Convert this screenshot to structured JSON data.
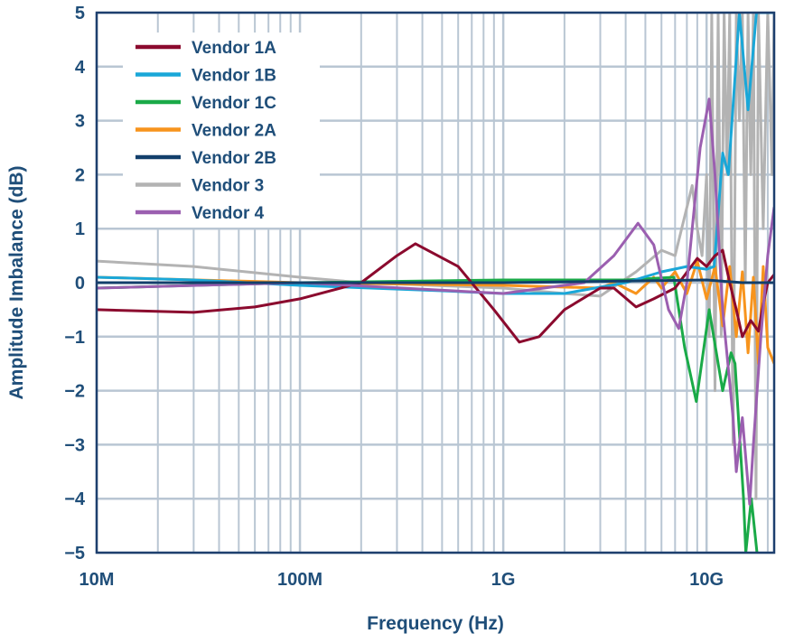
{
  "chart_data": {
    "type": "line",
    "title": "",
    "xlabel": "Frequency (Hz)",
    "ylabel": "Amplitude Imbalance (dB)",
    "xscale": "log",
    "xlim": [
      10000000.0,
      21500000000.0
    ],
    "ylim": [
      -5,
      5
    ],
    "grid": true,
    "legend_position": "top-left",
    "x_ticks": [
      {
        "v": 10000000.0,
        "label": "10M"
      },
      {
        "v": 100000000.0,
        "label": "100M"
      },
      {
        "v": 1000000000.0,
        "label": "1G"
      },
      {
        "v": 10000000000.0,
        "label": "10G"
      }
    ],
    "y_ticks": [
      {
        "v": 5,
        "label": "5"
      },
      {
        "v": 4,
        "label": "4"
      },
      {
        "v": 3,
        "label": "3"
      },
      {
        "v": 2,
        "label": "2"
      },
      {
        "v": 1,
        "label": "1"
      },
      {
        "v": 0,
        "label": "0"
      },
      {
        "v": -1,
        "label": "−1"
      },
      {
        "v": -2,
        "label": "−2"
      },
      {
        "v": -3,
        "label": "−3"
      },
      {
        "v": -4,
        "label": "−4"
      },
      {
        "v": -5,
        "label": "−5"
      }
    ],
    "series": [
      {
        "name": "Vendor 1A",
        "color": "#8b0a2e",
        "points": [
          [
            10000000.0,
            -0.5
          ],
          [
            30000000.0,
            -0.55
          ],
          [
            60000000.0,
            -0.45
          ],
          [
            100000000.0,
            -0.3
          ],
          [
            200000000.0,
            0
          ],
          [
            300000000.0,
            0.5
          ],
          [
            370000000.0,
            0.72
          ],
          [
            600000000.0,
            0.3
          ],
          [
            900000000.0,
            -0.5
          ],
          [
            1200000000.0,
            -1.1
          ],
          [
            1500000000.0,
            -1.0
          ],
          [
            2000000000.0,
            -0.5
          ],
          [
            3000000000.0,
            -0.1
          ],
          [
            3500000000.0,
            -0.1
          ],
          [
            4500000000.0,
            -0.45
          ],
          [
            5500000000.0,
            -0.3
          ],
          [
            7000000000.0,
            -0.1
          ],
          [
            9000000000.0,
            0.45
          ],
          [
            10000000000.0,
            0.3
          ],
          [
            11000000000.0,
            0.5
          ],
          [
            12000000000.0,
            0.6
          ],
          [
            13000000000.0,
            0
          ],
          [
            14000000000.0,
            -0.5
          ],
          [
            15000000000.0,
            -1.0
          ],
          [
            16500000000.0,
            -0.7
          ],
          [
            18000000000.0,
            -0.9
          ],
          [
            19000000000.0,
            -0.4
          ],
          [
            20000000000.0,
            0
          ],
          [
            21500000000.0,
            0.15
          ]
        ]
      },
      {
        "name": "Vendor 1B",
        "color": "#1aa7d8",
        "points": [
          [
            10000000.0,
            0.1
          ],
          [
            30000000.0,
            0.05
          ],
          [
            100000000.0,
            -0.05
          ],
          [
            500000000.0,
            -0.15
          ],
          [
            1000000000.0,
            -0.2
          ],
          [
            2000000000.0,
            -0.2
          ],
          [
            4000000000.0,
            0
          ],
          [
            6000000000.0,
            0.2
          ],
          [
            8000000000.0,
            0.3
          ],
          [
            10000000000.0,
            0.25
          ],
          [
            10900000000.0,
            0.3
          ],
          [
            12000000000.0,
            2.4
          ],
          [
            12800000000.0,
            2.0
          ],
          [
            14500000000.0,
            5
          ],
          [
            16000000000.0,
            3.2
          ],
          [
            17600000000.0,
            5
          ],
          [
            21500000000.0,
            5
          ]
        ]
      },
      {
        "name": "Vendor 1C",
        "color": "#1aaa48",
        "points": [
          [
            10000000.0,
            -0.1
          ],
          [
            30000000.0,
            -0.05
          ],
          [
            100000000.0,
            0
          ],
          [
            1000000000.0,
            0.05
          ],
          [
            4000000000.0,
            0.05
          ],
          [
            6900000000.0,
            0.1
          ],
          [
            7800000000.0,
            -1.2
          ],
          [
            8900000000.0,
            -2.2
          ],
          [
            10300000000.0,
            -0.5
          ],
          [
            12000000000.0,
            -2.0
          ],
          [
            13200000000.0,
            -1.3
          ],
          [
            13800000000.0,
            -1.5
          ],
          [
            15200000000.0,
            -4
          ],
          [
            15600000000.0,
            -5
          ],
          [
            16600000000.0,
            -4
          ],
          [
            17700000000.0,
            -5
          ]
        ]
      },
      {
        "name": "Vendor 2A",
        "color": "#f7941d",
        "points": [
          [
            10000000.0,
            0.1
          ],
          [
            100000000.0,
            0
          ],
          [
            1000000000.0,
            -0.05
          ],
          [
            3000000000.0,
            -0.1
          ],
          [
            3500000000.0,
            0
          ],
          [
            4500000000.0,
            -0.2
          ],
          [
            5500000000.0,
            0.1
          ],
          [
            6000000000.0,
            -0.1
          ],
          [
            7000000000.0,
            0.2
          ],
          [
            8000000000.0,
            -0.2
          ],
          [
            9000000000.0,
            0.4
          ],
          [
            10000000000.0,
            -0.3
          ],
          [
            11000000000.0,
            0.3
          ],
          [
            12000000000.0,
            -0.8
          ],
          [
            13000000000.0,
            0.3
          ],
          [
            14000000000.0,
            -1.0
          ],
          [
            15000000000.0,
            0.2
          ],
          [
            16000000000.0,
            -1.3
          ],
          [
            17000000000.0,
            0.1
          ],
          [
            18000000000.0,
            -1.5
          ],
          [
            19000000000.0,
            0.3
          ],
          [
            20000000000.0,
            -1.2
          ],
          [
            21500000000.0,
            -1.5
          ]
        ]
      },
      {
        "name": "Vendor 2B",
        "color": "#123f6b",
        "points": [
          [
            10000000.0,
            0
          ],
          [
            100000000.0,
            0
          ],
          [
            1000000000.0,
            0
          ],
          [
            10000000000.0,
            0.05
          ],
          [
            15000000000.0,
            0
          ],
          [
            21500000000.0,
            0
          ]
        ]
      },
      {
        "name": "Vendor 3",
        "color": "#b3b3b3",
        "points": [
          [
            10000000.0,
            0.4
          ],
          [
            30000000.0,
            0.3
          ],
          [
            100000000.0,
            0.1
          ],
          [
            200000000.0,
            0
          ],
          [
            1000000000.0,
            -0.1
          ],
          [
            2000000000.0,
            -0.2
          ],
          [
            3000000000.0,
            -0.25
          ],
          [
            4500000000.0,
            0.2
          ],
          [
            6000000000.0,
            0.6
          ],
          [
            7000000000.0,
            0.5
          ],
          [
            8500000000.0,
            1.8
          ],
          [
            9000000000.0,
            1.0
          ],
          [
            9500000000.0,
            0.5
          ],
          [
            10000000000.0,
            2
          ],
          [
            10300000000.0,
            -1
          ],
          [
            10600000000.0,
            5
          ],
          [
            11000000000.0,
            -2
          ],
          [
            11400000000.0,
            5
          ],
          [
            11800000000.0,
            -1
          ],
          [
            12200000000.0,
            5
          ],
          [
            12600000000.0,
            2
          ],
          [
            13000000000.0,
            5
          ],
          [
            13500000000.0,
            -3
          ],
          [
            14000000000.0,
            5
          ],
          [
            14500000000.0,
            3
          ],
          [
            15000000000.0,
            5
          ],
          [
            15500000000.0,
            0
          ],
          [
            16000000000.0,
            5
          ],
          [
            16500000000.0,
            2
          ],
          [
            17000000000.0,
            5
          ],
          [
            17500000000.0,
            -4
          ],
          [
            18000000000.0,
            5
          ],
          [
            19000000000.0,
            1
          ],
          [
            20000000000.0,
            5
          ],
          [
            21000000000.0,
            2
          ],
          [
            21500000000.0,
            5
          ]
        ]
      },
      {
        "name": "Vendor 4",
        "color": "#9b5fb0",
        "points": [
          [
            10000000.0,
            -0.1
          ],
          [
            100000000.0,
            0
          ],
          [
            1000000000.0,
            -0.2
          ],
          [
            2500000000.0,
            0
          ],
          [
            3500000000.0,
            0.5
          ],
          [
            4600000000.0,
            1.1
          ],
          [
            5500000000.0,
            0.7
          ],
          [
            6500000000.0,
            -0.5
          ],
          [
            7300000000.0,
            -0.85
          ],
          [
            8000000000.0,
            0
          ],
          [
            9300000000.0,
            2.5
          ],
          [
            10300000000.0,
            3.4
          ],
          [
            11000000000.0,
            2.0
          ],
          [
            12000000000.0,
            -0.5
          ],
          [
            13500000000.0,
            -2.5
          ],
          [
            14000000000.0,
            -3.5
          ],
          [
            15000000000.0,
            -2.5
          ],
          [
            16300000000.0,
            -4.1
          ],
          [
            17000000000.0,
            -3
          ],
          [
            18500000000.0,
            -1
          ],
          [
            20000000000.0,
            0.5
          ],
          [
            21500000000.0,
            1.4
          ]
        ]
      }
    ]
  }
}
